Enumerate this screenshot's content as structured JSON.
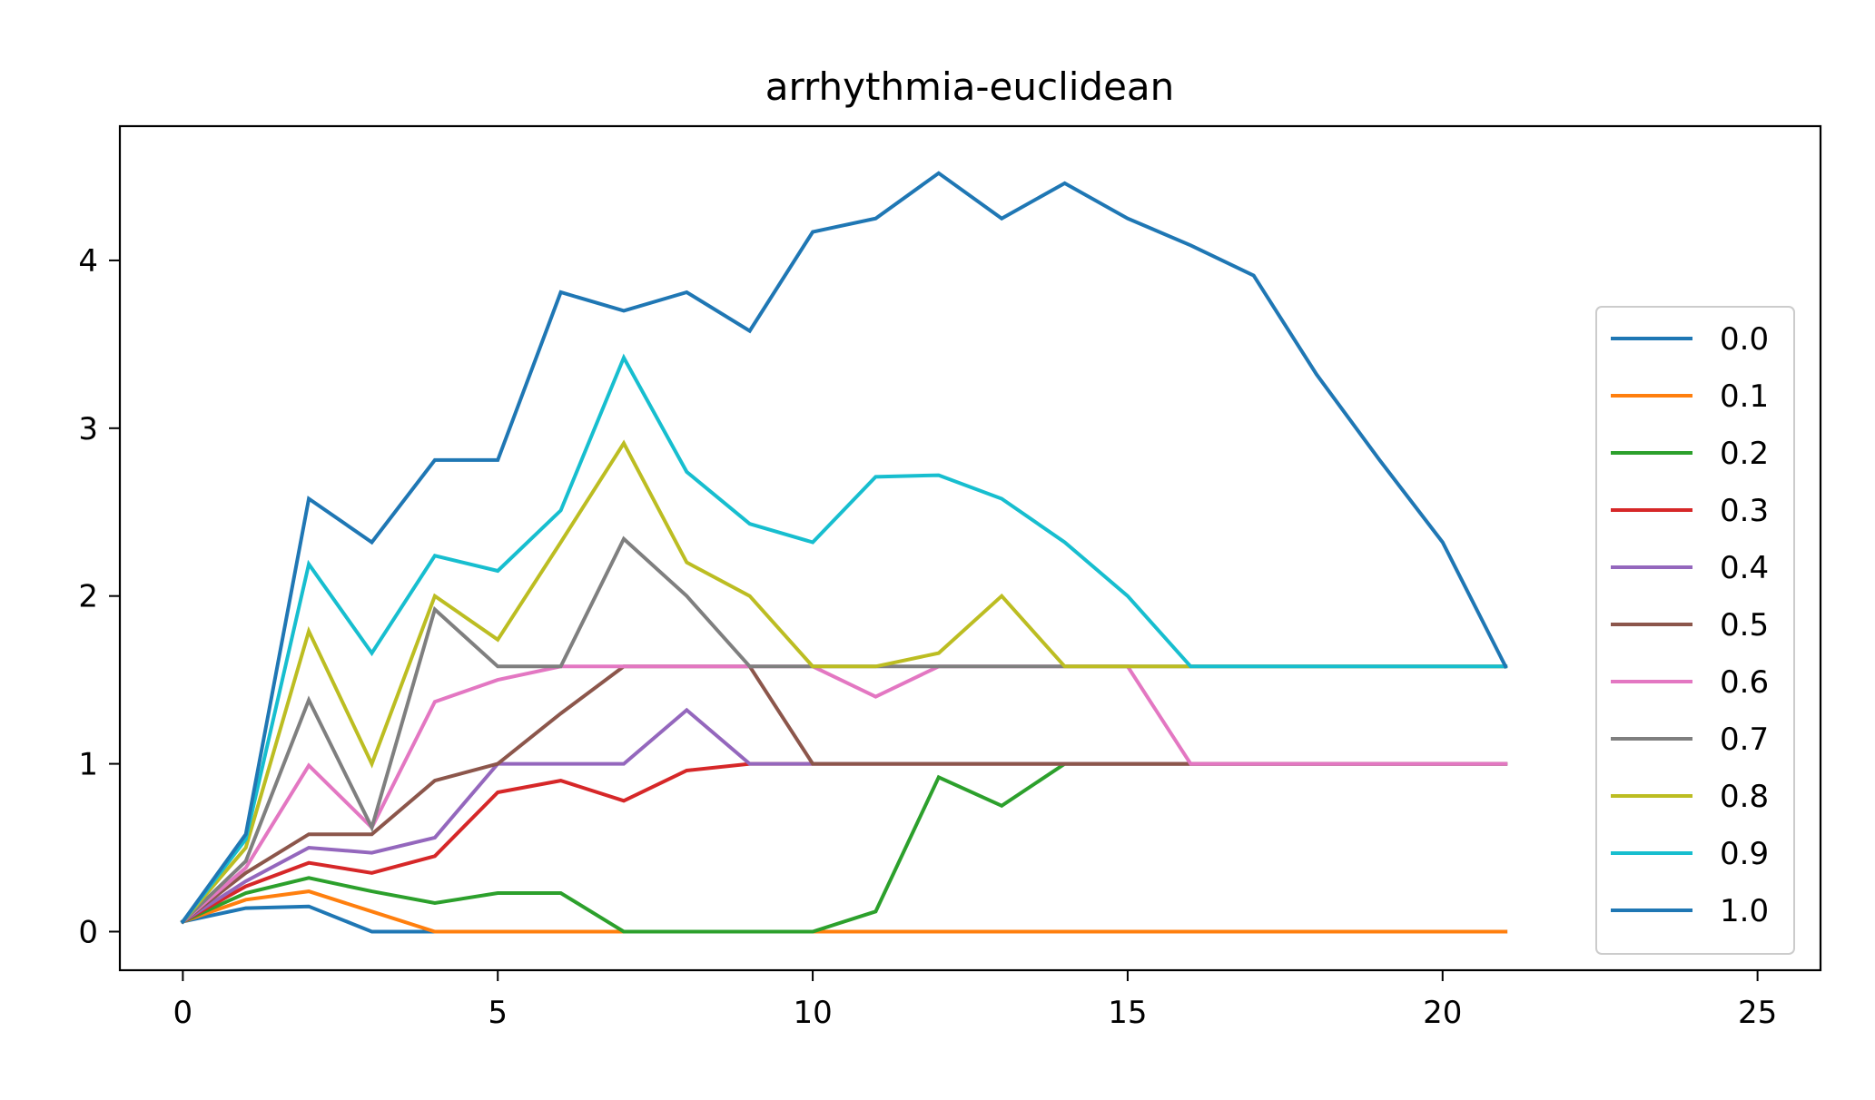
{
  "chart_data": {
    "type": "line",
    "title": "arrhythmia-euclidean",
    "xlabel": "",
    "ylabel": "",
    "xlim": [
      -1.0,
      26.0
    ],
    "ylim": [
      -0.23,
      4.8
    ],
    "xticks": [
      0,
      5,
      10,
      15,
      20,
      25
    ],
    "yticks": [
      0,
      1,
      2,
      3,
      4
    ],
    "grid": false,
    "legend_position": "right",
    "x": [
      0,
      1,
      2,
      3,
      4,
      5,
      6,
      7,
      8,
      9,
      10,
      11,
      12,
      13,
      14,
      15,
      16,
      17,
      18,
      19,
      20,
      21
    ],
    "series": [
      {
        "name": "0.0",
        "color": "#1f77b4",
        "values": [
          0.06,
          0.14,
          0.15,
          0.0,
          0.0,
          0.0,
          0.0,
          0.0,
          0.0,
          0.0,
          0.0,
          0.0,
          0.0,
          0.0,
          0.0,
          0.0,
          0.0,
          0.0,
          0.0,
          0.0,
          0.0,
          0.0
        ]
      },
      {
        "name": "0.1",
        "color": "#ff7f0e",
        "values": [
          0.06,
          0.19,
          0.24,
          0.12,
          0.0,
          0.0,
          0.0,
          0.0,
          0.0,
          0.0,
          0.0,
          0.0,
          0.0,
          0.0,
          0.0,
          0.0,
          0.0,
          0.0,
          0.0,
          0.0,
          0.0,
          0.0
        ]
      },
      {
        "name": "0.2",
        "color": "#2ca02c",
        "values": [
          0.06,
          0.23,
          0.32,
          0.24,
          0.17,
          0.23,
          0.23,
          0.0,
          0.0,
          0.0,
          0.0,
          0.12,
          0.92,
          0.75,
          1.0,
          1.0,
          1.0,
          1.0,
          1.0,
          1.0,
          1.0,
          1.0
        ]
      },
      {
        "name": "0.3",
        "color": "#d62728",
        "values": [
          0.06,
          0.27,
          0.41,
          0.35,
          0.45,
          0.83,
          0.9,
          0.78,
          0.96,
          1.0,
          1.0,
          1.0,
          1.0,
          1.0,
          1.0,
          1.0,
          1.0,
          1.0,
          1.0,
          1.0,
          1.0,
          1.0
        ]
      },
      {
        "name": "0.4",
        "color": "#9467bd",
        "values": [
          0.06,
          0.3,
          0.5,
          0.47,
          0.56,
          1.0,
          1.0,
          1.0,
          1.32,
          1.0,
          1.0,
          1.0,
          1.0,
          1.0,
          1.0,
          1.0,
          1.0,
          1.0,
          1.0,
          1.0,
          1.0,
          1.0
        ]
      },
      {
        "name": "0.5",
        "color": "#8c564b",
        "values": [
          0.06,
          0.35,
          0.58,
          0.58,
          0.9,
          1.0,
          1.3,
          1.58,
          1.58,
          1.58,
          1.0,
          1.0,
          1.0,
          1.0,
          1.0,
          1.0,
          1.0,
          1.0,
          1.0,
          1.0,
          1.0,
          1.0
        ]
      },
      {
        "name": "0.6",
        "color": "#e377c2",
        "values": [
          0.06,
          0.38,
          0.99,
          0.62,
          1.37,
          1.5,
          1.58,
          1.58,
          1.58,
          1.58,
          1.58,
          1.4,
          1.58,
          1.58,
          1.58,
          1.58,
          1.0,
          1.0,
          1.0,
          1.0,
          1.0,
          1.0
        ]
      },
      {
        "name": "0.7",
        "color": "#7f7f7f",
        "values": [
          0.06,
          0.42,
          1.38,
          0.62,
          1.92,
          1.58,
          1.58,
          2.34,
          2.0,
          1.58,
          1.58,
          1.58,
          1.58,
          1.58,
          1.58,
          1.58,
          1.58,
          1.58,
          1.58,
          1.58,
          1.58,
          1.58
        ]
      },
      {
        "name": "0.8",
        "color": "#bcbd22",
        "values": [
          0.06,
          0.5,
          1.79,
          1.0,
          2.0,
          1.74,
          2.32,
          2.91,
          2.2,
          2.0,
          1.58,
          1.58,
          1.66,
          2.0,
          1.58,
          1.58,
          1.58,
          1.58,
          1.58,
          1.58,
          1.58,
          1.58
        ]
      },
      {
        "name": "0.9",
        "color": "#17becf",
        "values": [
          0.06,
          0.55,
          2.19,
          1.66,
          2.24,
          2.15,
          2.51,
          3.42,
          2.74,
          2.43,
          2.32,
          2.71,
          2.72,
          2.58,
          2.32,
          2.0,
          1.58,
          1.58,
          1.58,
          1.58,
          1.58,
          1.58
        ]
      },
      {
        "name": "1.0",
        "color": "#1f77b4",
        "values": [
          0.06,
          0.58,
          2.58,
          2.32,
          2.81,
          2.81,
          3.81,
          3.7,
          3.81,
          3.58,
          4.17,
          4.25,
          4.52,
          4.25,
          4.46,
          4.25,
          4.09,
          3.91,
          3.32,
          2.81,
          2.32,
          1.58
        ]
      }
    ]
  }
}
